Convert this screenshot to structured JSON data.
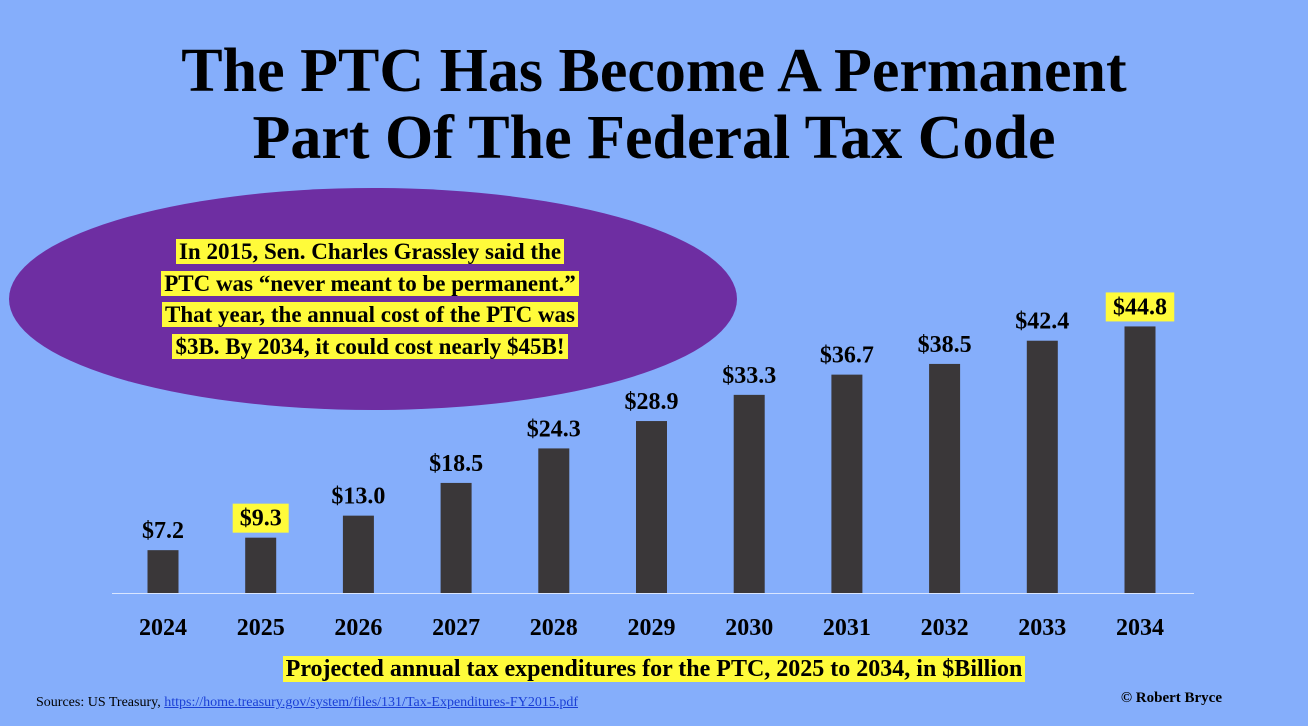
{
  "title": {
    "line1": "The PTC Has Become A Permanent",
    "line2": "Part Of The Federal Tax Code"
  },
  "callout": {
    "lines": [
      "In 2015, Sen. Charles Grassley said the",
      "PTC was “never meant to be permanent.”",
      "That year, the annual cost of the PTC was",
      "$3B. By 2034, it could cost nearly $45B!"
    ],
    "color": "#6e2ea2"
  },
  "chart_data": {
    "type": "bar",
    "categories": [
      "2024",
      "2025",
      "2026",
      "2027",
      "2028",
      "2029",
      "2030",
      "2031",
      "2032",
      "2033",
      "2034"
    ],
    "values": [
      7.2,
      9.3,
      13.0,
      18.5,
      24.3,
      28.9,
      33.3,
      36.7,
      38.5,
      42.4,
      44.8
    ],
    "value_labels": [
      "$7.2",
      "$9.3",
      "$13.0",
      "$18.5",
      "$24.3",
      "$28.9",
      "$33.3",
      "$36.7",
      "$38.5",
      "$42.4",
      "$44.8"
    ],
    "highlighted": [
      "2025",
      "2034"
    ],
    "ylim": [
      0,
      50
    ],
    "bar_color": "#3a3739",
    "highlight_color": "#fffb3a",
    "background": "#85aefb",
    "xlabel": "",
    "ylabel": ""
  },
  "caption": "Projected annual tax expenditures for the PTC, 2025 to 2034, in $Billion",
  "sources": {
    "label": "Sources: US Treasury,",
    "link": "https://home.treasury.gov/system/files/131/Tax-Expenditures-FY2015.pdf"
  },
  "credit": "© Robert Bryce"
}
